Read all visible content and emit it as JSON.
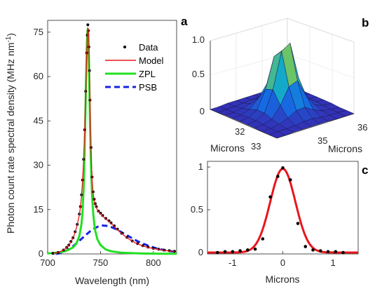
{
  "chart_data": [
    {
      "panel": "a",
      "type": "line",
      "xlabel": "Wavelength (nm)",
      "ylabel": "Photon count rate spectral density (MHz nm",
      "ylabel_sup": "-1",
      "ylabel_close": ")",
      "xlim": [
        700,
        822
      ],
      "ylim": [
        0,
        79
      ],
      "xticks": [
        700,
        750,
        800
      ],
      "yticks": [
        0,
        15,
        30,
        45,
        60,
        75
      ],
      "legend_position": "top-right",
      "series": [
        {
          "name": "Data",
          "style": "markers",
          "color": "#000000",
          "x": [
            705,
            710,
            715,
            718,
            720,
            722,
            724,
            726,
            728,
            730,
            731,
            732,
            733,
            734,
            735,
            736,
            737,
            737.5,
            738,
            738.5,
            739,
            739.5,
            740,
            741,
            742,
            743,
            744,
            745,
            746,
            748,
            750,
            752,
            755,
            758,
            760,
            763,
            766,
            770,
            775,
            780,
            785,
            790,
            795,
            800,
            805,
            810,
            815,
            820
          ],
          "y": [
            0.2,
            0.5,
            1.3,
            2.2,
            3.0,
            4.2,
            5.5,
            7.5,
            10.0,
            13.5,
            16.0,
            20.0,
            25.0,
            32.0,
            42.0,
            55.0,
            68.0,
            74.0,
            77.5,
            75.5,
            70.0,
            62.0,
            52.0,
            36.0,
            26.0,
            21.0,
            18.5,
            17.0,
            16.0,
            14.5,
            13.8,
            13.0,
            12.0,
            11.2,
            10.5,
            9.5,
            8.4,
            7.0,
            5.6,
            4.4,
            3.5,
            2.8,
            2.3,
            1.9,
            1.6,
            1.3,
            1.1,
            0.9
          ]
        },
        {
          "name": "Model",
          "style": "line",
          "color": "#e8161c",
          "x": [
            705,
            710,
            715,
            718,
            720,
            722,
            724,
            726,
            728,
            730,
            731,
            732,
            733,
            734,
            735,
            736,
            737,
            737.5,
            738,
            738.5,
            739,
            739.5,
            740,
            741,
            742,
            743,
            744,
            745,
            746,
            748,
            750,
            752,
            755,
            758,
            760,
            763,
            766,
            770,
            775,
            780,
            785,
            790,
            795,
            800,
            805,
            810,
            815,
            820
          ],
          "y": [
            0.2,
            0.5,
            1.3,
            2.1,
            2.9,
            4.1,
            5.4,
            7.3,
            9.8,
            13.2,
            15.8,
            19.6,
            24.6,
            31.5,
            41.5,
            54.5,
            67.5,
            73.5,
            76.5,
            75.0,
            69.5,
            61.5,
            51.5,
            35.5,
            25.5,
            20.5,
            18.0,
            16.5,
            15.6,
            14.3,
            13.6,
            12.8,
            11.8,
            11.0,
            10.3,
            9.3,
            8.2,
            6.9,
            5.5,
            4.3,
            3.4,
            2.7,
            2.2,
            1.8,
            1.5,
            1.2,
            1.0,
            0.8
          ]
        },
        {
          "name": "ZPL",
          "style": "line",
          "color": "#22e022",
          "x": [
            700,
            705,
            710,
            715,
            720,
            724,
            727,
            730,
            732,
            733,
            734,
            735,
            736,
            737,
            737.5,
            738,
            738.5,
            739,
            740,
            741,
            742,
            743,
            744,
            745,
            747,
            750,
            755,
            760,
            770,
            780,
            790,
            800,
            810,
            822
          ],
          "y": [
            0.2,
            0.3,
            0.5,
            0.8,
            1.4,
            2.2,
            3.4,
            6.0,
            10.2,
            14.5,
            22.0,
            35.0,
            53.0,
            70.0,
            75.0,
            76.0,
            74.0,
            66.0,
            46.0,
            30.0,
            20.0,
            14.0,
            10.3,
            7.8,
            5.0,
            3.0,
            1.5,
            0.9,
            0.4,
            0.25,
            0.15,
            0.1,
            0.07,
            0.05
          ]
        },
        {
          "name": "PSB",
          "style": "dashed",
          "color": "#1424e6",
          "x": [
            708,
            712,
            716,
            720,
            724,
            728,
            732,
            736,
            740,
            744,
            748,
            752,
            756,
            760,
            765,
            770,
            775,
            780,
            785,
            790,
            795,
            800,
            805,
            810,
            815,
            820
          ],
          "y": [
            0.0,
            0.3,
            0.8,
            1.6,
            2.6,
            3.8,
            5.1,
            6.4,
            7.6,
            8.6,
            9.3,
            9.6,
            9.5,
            9.1,
            8.3,
            7.3,
            6.3,
            5.3,
            4.3,
            3.5,
            2.8,
            2.2,
            1.7,
            1.3,
            1.0,
            0.8
          ]
        }
      ]
    },
    {
      "panel": "b",
      "type": "surface",
      "xlabel": "Microns",
      "ylabel": "Microns",
      "zlim": [
        0,
        1
      ],
      "zticks": [
        "0",
        "0.5",
        "1.0"
      ],
      "xticks": [
        "32",
        "33"
      ],
      "yticks": [
        "35",
        "36"
      ],
      "z_grid": [
        [
          0.0,
          0.0,
          0.01,
          0.01,
          0.01,
          0.01,
          0.01,
          0.0,
          0.0,
          0.0
        ],
        [
          0.0,
          0.01,
          0.01,
          0.02,
          0.03,
          0.03,
          0.02,
          0.01,
          0.01,
          0.0
        ],
        [
          0.01,
          0.01,
          0.03,
          0.06,
          0.1,
          0.1,
          0.06,
          0.03,
          0.01,
          0.01
        ],
        [
          0.01,
          0.02,
          0.06,
          0.18,
          0.35,
          0.38,
          0.2,
          0.07,
          0.02,
          0.01
        ],
        [
          0.01,
          0.03,
          0.1,
          0.36,
          0.8,
          0.85,
          0.4,
          0.12,
          0.03,
          0.01
        ],
        [
          0.01,
          0.03,
          0.1,
          0.4,
          0.92,
          1.0,
          0.45,
          0.12,
          0.03,
          0.01
        ],
        [
          0.01,
          0.02,
          0.06,
          0.22,
          0.45,
          0.5,
          0.24,
          0.07,
          0.02,
          0.01
        ],
        [
          0.0,
          0.01,
          0.03,
          0.08,
          0.15,
          0.16,
          0.08,
          0.03,
          0.01,
          0.0
        ],
        [
          0.0,
          0.01,
          0.01,
          0.02,
          0.04,
          0.04,
          0.02,
          0.01,
          0.01,
          0.0
        ],
        [
          0.0,
          0.0,
          0.01,
          0.01,
          0.01,
          0.01,
          0.01,
          0.0,
          0.0,
          0.0
        ]
      ]
    },
    {
      "panel": "c",
      "type": "line",
      "xlabel": "Microns",
      "xlim": [
        -1.5,
        1.5
      ],
      "ylim": [
        0,
        1.05
      ],
      "xticks": [
        -1,
        0,
        1
      ],
      "yticks": [
        0,
        0.5,
        1
      ],
      "ytick_labels": [
        "0",
        "0.5",
        "1"
      ],
      "series": [
        {
          "name": "",
          "style": "markers",
          "color": "#000000",
          "x": [
            -1.3,
            -1.15,
            -1.0,
            -0.85,
            -0.7,
            -0.55,
            -0.4,
            -0.25,
            -0.1,
            0.0,
            0.15,
            0.3,
            0.45,
            0.6,
            0.75,
            0.9,
            1.05,
            1.2
          ],
          "y": [
            0.0,
            0.01,
            0.01,
            0.02,
            0.03,
            0.04,
            0.16,
            0.65,
            0.89,
            0.99,
            0.85,
            0.34,
            0.07,
            0.03,
            0.02,
            0.01,
            0.01,
            0.0
          ]
        },
        {
          "name": "",
          "style": "line",
          "color": "#e8161c",
          "gaussian": {
            "center": 0.0,
            "sigma": 0.25,
            "amplitude": 0.98
          }
        }
      ]
    }
  ]
}
